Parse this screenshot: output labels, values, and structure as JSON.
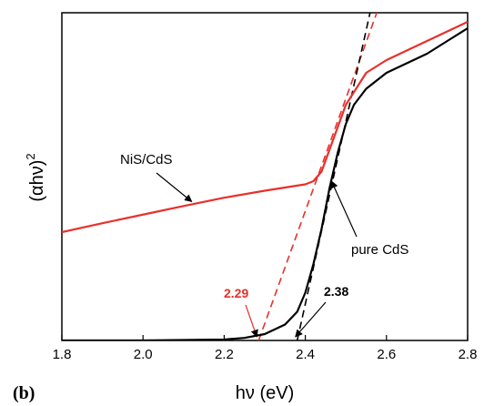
{
  "chart_data": {
    "type": "line",
    "xlabel": "hν (eV)",
    "ylabel": "(αhν)",
    "ylabel_superscript": "2",
    "panel_label": "(b)",
    "xlim": [
      1.8,
      2.8
    ],
    "ylim": [
      0,
      1
    ],
    "x_ticks": [
      "1.8",
      "2.0",
      "2.2",
      "2.4",
      "2.6",
      "2.8"
    ],
    "y_ticks_shown": false,
    "series": [
      {
        "name": "NiS/CdS",
        "color": "#e8302a",
        "x": [
          1.8,
          1.9,
          2.0,
          2.1,
          2.2,
          2.3,
          2.35,
          2.4,
          2.42,
          2.44,
          2.46,
          2.48,
          2.5,
          2.55,
          2.6,
          2.65,
          2.7,
          2.75,
          2.8
        ],
        "y": [
          0.34,
          0.368,
          0.395,
          0.422,
          0.448,
          0.47,
          0.48,
          0.49,
          0.5,
          0.53,
          0.6,
          0.67,
          0.74,
          0.84,
          0.88,
          0.91,
          0.94,
          0.97,
          1.0
        ]
      },
      {
        "name": "pure CdS",
        "color": "#000000",
        "x": [
          1.8,
          2.0,
          2.2,
          2.25,
          2.3,
          2.35,
          2.38,
          2.4,
          2.42,
          2.44,
          2.46,
          2.48,
          2.5,
          2.52,
          2.55,
          2.6,
          2.65,
          2.7,
          2.75,
          2.8
        ],
        "y": [
          0.0,
          0.0,
          0.003,
          0.008,
          0.02,
          0.05,
          0.09,
          0.15,
          0.24,
          0.35,
          0.48,
          0.59,
          0.68,
          0.74,
          0.79,
          0.84,
          0.87,
          0.9,
          0.94,
          0.98
        ]
      }
    ],
    "fit_lines": [
      {
        "color": "#e8302a",
        "intercept_label": "2.29",
        "x": [
          2.285,
          2.585
        ],
        "y": [
          0.0,
          1.06
        ]
      },
      {
        "color": "#000000",
        "intercept_label": "2.38",
        "x": [
          2.38,
          2.565
        ],
        "y": [
          0.0,
          1.06
        ]
      }
    ],
    "annotations": [
      {
        "text": "NiS/CdS",
        "arrow_to": [
          2.12,
          0.43
        ]
      },
      {
        "text": "pure CdS",
        "arrow_to": [
          2.46,
          0.42
        ]
      }
    ]
  }
}
